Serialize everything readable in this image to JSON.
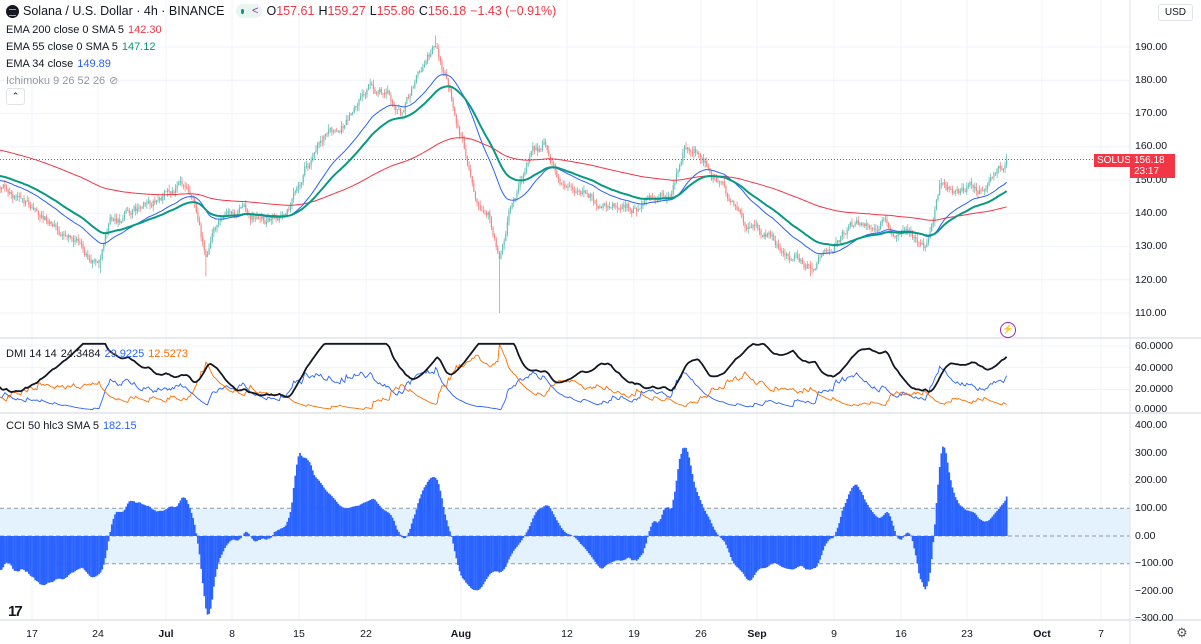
{
  "header": {
    "symbol_title": "Solana / U.S. Dollar · 4h · BINANCE",
    "open_label": "O",
    "open": "157.61",
    "high_label": "H",
    "high": "159.27",
    "low_label": "L",
    "low": "155.86",
    "close_label": "C",
    "close": "156.18",
    "change": "−1.43 (−0.91%)",
    "currency": "USD",
    "share_icon": "share-icon"
  },
  "indicators": [
    {
      "label": "EMA 200 close 0 SMA 5",
      "value": "142.30",
      "color": "#f23645"
    },
    {
      "label": "EMA 55 close 0 SMA 5",
      "value": "147.12",
      "color": "#089981"
    },
    {
      "label": "EMA 34 close",
      "value": "149.89",
      "color": "#2962ff"
    },
    {
      "label": "Ichimoku 9 26 52 26",
      "value": "",
      "color": "#9598a1"
    }
  ],
  "dmi_legend": {
    "label": "DMI 14 14",
    "adx": "24.3484",
    "plus_di": "29.9225",
    "minus_di": "12.5273"
  },
  "cci_legend": {
    "label": "CCI 50 hlc3 SMA 5",
    "value": "182.15"
  },
  "price_tag": {
    "symbol": "SOLUSD",
    "price": "156.18",
    "countdown": "23:17"
  },
  "price_axis": [
    "190.00",
    "180.00",
    "170.00",
    "160.00",
    "150.00",
    "140.00",
    "130.00",
    "120.00",
    "110.00"
  ],
  "dmi_axis": [
    "60.0000",
    "40.0000",
    "20.0000",
    "0.0000"
  ],
  "cci_axis": [
    "400.00",
    "300.00",
    "200.00",
    "100.00",
    "0.00",
    "−100.00",
    "−200.00",
    "−300.00"
  ],
  "time_axis": [
    "17",
    "24",
    "Jul",
    "8",
    "15",
    "22",
    "Aug",
    "12",
    "19",
    "26",
    "Sep",
    "9",
    "16",
    "23",
    "Oct",
    "7"
  ],
  "colors": {
    "up": "#26a69a",
    "down": "#ef5350",
    "ema200": "#f23645",
    "ema55": "#089981",
    "ema34": "#2962ff",
    "adx": "#131722",
    "plus_di": "#2962ff",
    "minus_di": "#ff6d00",
    "cci": "#2962ff",
    "cci_band": "#e3f2fd"
  },
  "chart_data": {
    "type": "candlestick",
    "timeframe": "4h",
    "x_unit": "days since Jun 17",
    "price_anchors": [
      [
        -14,
        160
      ],
      [
        -8,
        152
      ],
      [
        -3.3,
        148
      ],
      [
        0.8,
        140
      ],
      [
        2.9,
        135
      ],
      [
        7.1,
        125
      ],
      [
        8.2,
        137
      ],
      [
        10.8,
        140
      ],
      [
        12.3,
        142
      ],
      [
        15.5,
        148
      ],
      [
        17.0,
        140
      ],
      [
        18.1,
        125
      ],
      [
        19.1,
        135
      ],
      [
        21.7,
        140
      ],
      [
        24.9,
        138
      ],
      [
        27.0,
        142
      ],
      [
        28.5,
        155
      ],
      [
        30.1,
        160
      ],
      [
        32.7,
        168
      ],
      [
        35.3,
        178
      ],
      [
        37.4,
        175
      ],
      [
        38.5,
        170
      ],
      [
        40.5,
        183
      ],
      [
        42.1,
        190
      ],
      [
        43.7,
        178
      ],
      [
        44.7,
        165
      ],
      [
        46.3,
        148
      ],
      [
        47.9,
        140
      ],
      [
        48.9,
        125
      ],
      [
        49.9,
        140
      ],
      [
        51.5,
        153
      ],
      [
        52.6,
        158
      ],
      [
        53.6,
        160
      ],
      [
        55.2,
        150
      ],
      [
        59.4,
        143
      ],
      [
        63.5,
        142
      ],
      [
        66.7,
        145
      ],
      [
        68.2,
        160
      ],
      [
        69.8,
        158
      ],
      [
        71.9,
        148
      ],
      [
        75.0,
        135
      ],
      [
        78.2,
        130
      ],
      [
        81.3,
        125
      ],
      [
        83.4,
        130
      ],
      [
        85.5,
        135
      ],
      [
        88.6,
        138
      ],
      [
        90.7,
        133
      ],
      [
        93.3,
        130
      ],
      [
        94.9,
        148
      ],
      [
        97.0,
        146
      ],
      [
        99.6,
        148
      ],
      [
        101.2,
        153
      ],
      [
        101.9,
        156.18
      ]
    ],
    "wick_extremes": [
      [
        7.1,
        "low",
        122
      ],
      [
        18.1,
        "low",
        121
      ],
      [
        42.1,
        "high",
        193.5
      ],
      [
        48.9,
        "low",
        110
      ],
      [
        81.3,
        "low",
        121
      ]
    ],
    "last_price": 156.18,
    "price_range": [
      106,
      198
    ],
    "dmi_range": [
      0,
      60
    ],
    "cci_range": [
      -300,
      400
    ],
    "cci_levels": [
      100,
      0,
      -100
    ]
  }
}
